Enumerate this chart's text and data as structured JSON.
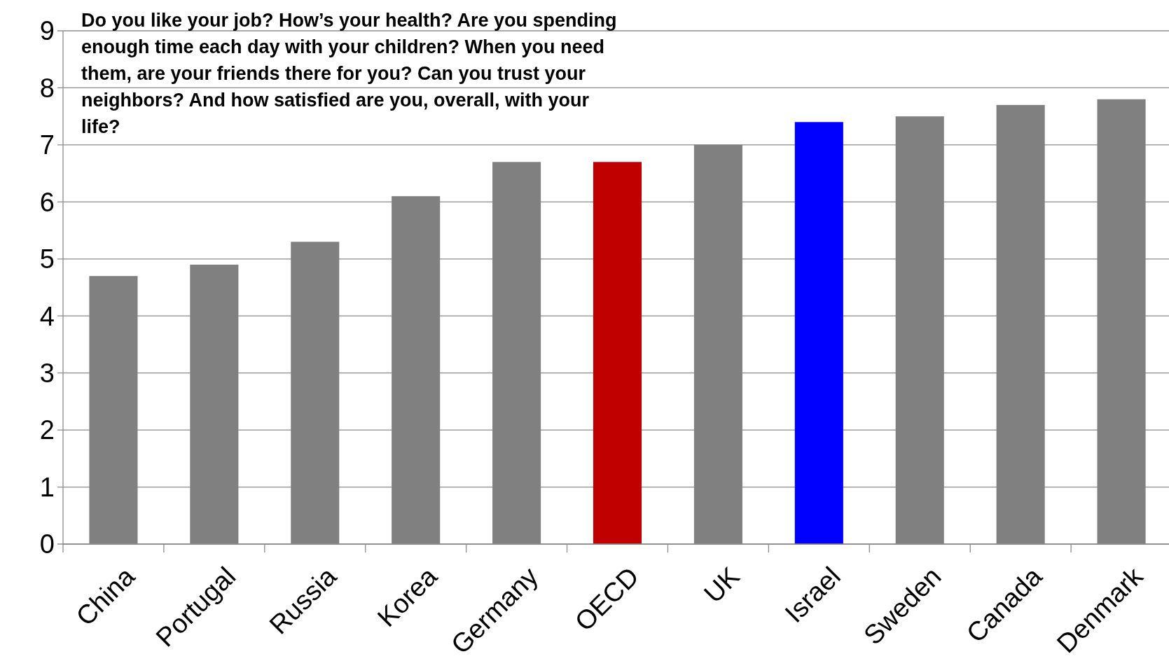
{
  "chart_data": {
    "type": "bar",
    "title": "Do you like your job? How’s your health? Are you spending enough time each day with your children? When you need them, are your friends there for you? Can you trust your neighbors? And how satisfied are you, overall, with your life?",
    "categories": [
      "China",
      "Portugal",
      "Russia",
      "Korea",
      "Germany",
      "OECD",
      "UK",
      "Israel",
      "Sweden",
      "Canada",
      "Denmark"
    ],
    "values": [
      4.7,
      4.9,
      5.3,
      6.1,
      6.7,
      6.7,
      7.0,
      7.4,
      7.5,
      7.7,
      7.8
    ],
    "colors": [
      "#808080",
      "#808080",
      "#808080",
      "#808080",
      "#808080",
      "#c00000",
      "#808080",
      "#0000ff",
      "#808080",
      "#808080",
      "#808080"
    ],
    "ylim": [
      0,
      9
    ],
    "yticks": [
      0,
      1,
      2,
      3,
      4,
      5,
      6,
      7,
      8,
      9
    ],
    "grid": "y"
  }
}
